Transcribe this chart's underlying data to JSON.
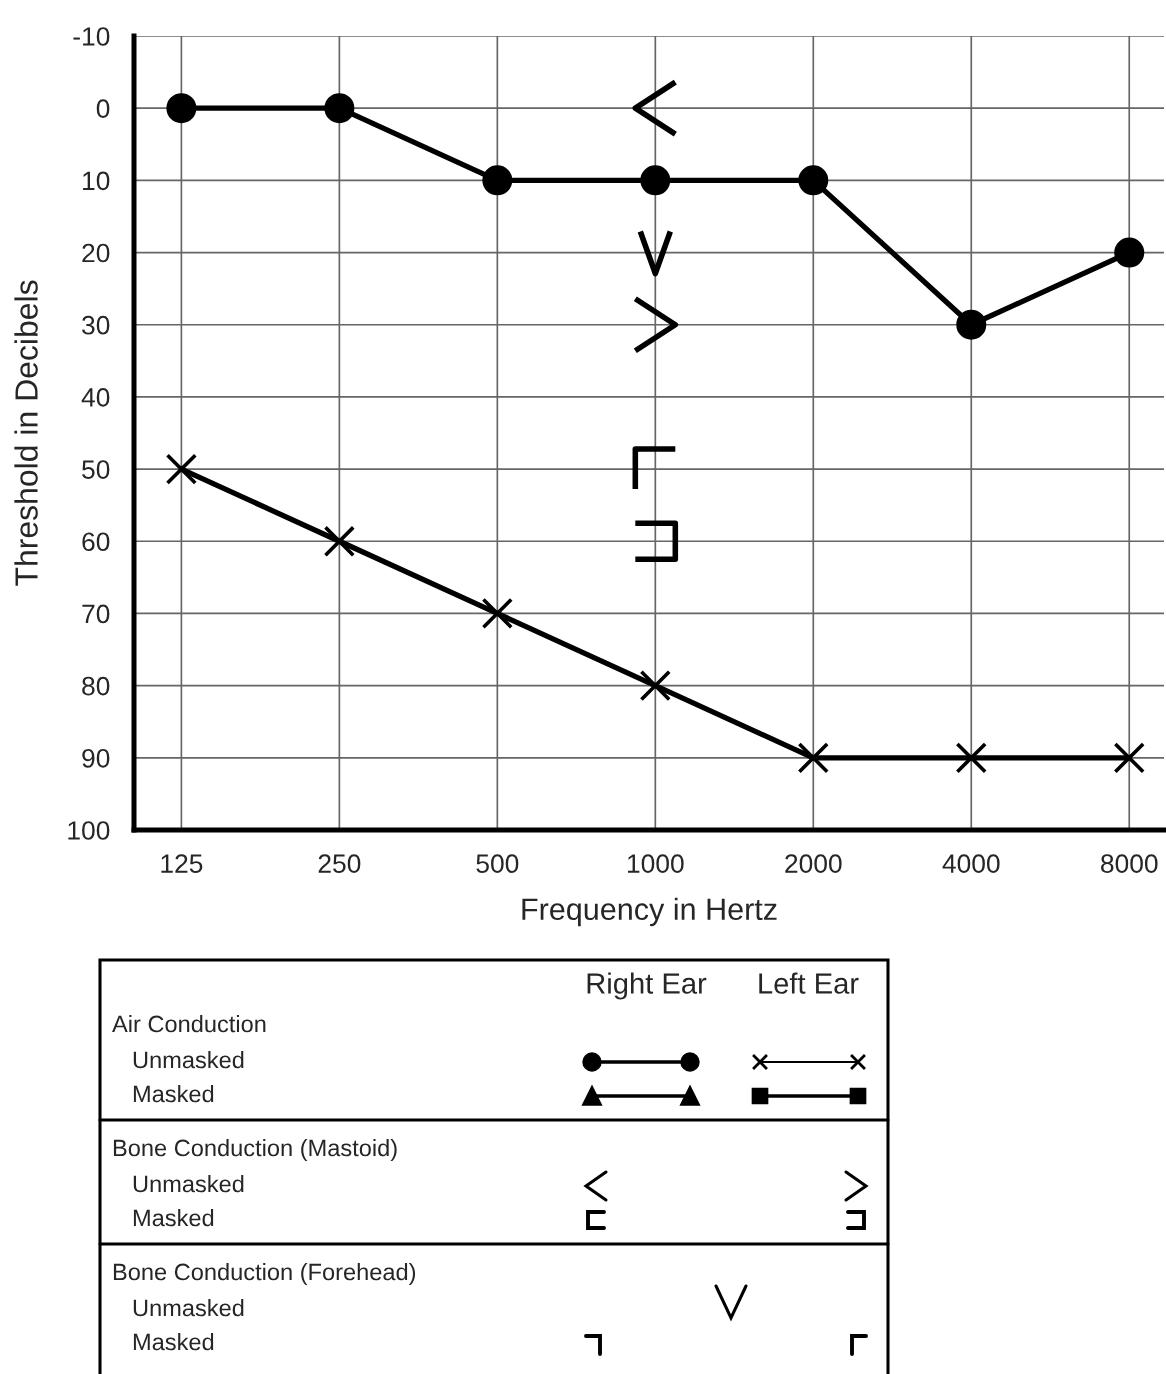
{
  "chart_data": {
    "type": "line",
    "xlabel": "Frequency in Hertz",
    "ylabel": "Threshold in Decibels",
    "categories": [
      "125",
      "250",
      "500",
      "1000",
      "2000",
      "4000",
      "8000"
    ],
    "series": [
      {
        "color": "#000000",
        "marker": "circle",
        "values": [
          0,
          0,
          10,
          10,
          10,
          30,
          20
        ]
      },
      {
        "color": "#000000",
        "marker": "cross",
        "values": [
          50,
          60,
          70,
          80,
          90,
          90,
          90
        ]
      },
      {
        "type": "scatter",
        "color": "#000000",
        "values": [
          null,
          null,
          null,
          0,
          null,
          null,
          null
        ]
      },
      {
        "type": "scatter",
        "color": "#000000",
        "values": [
          null,
          null,
          null,
          20,
          null,
          null,
          null
        ]
      },
      {
        "type": "scatter",
        "color": "#000000",
        "values": [
          null,
          null,
          null,
          30,
          null,
          null,
          null
        ]
      },
      {
        "type": "scatter",
        "color": "#000000",
        "values": [
          null,
          null,
          null,
          50,
          null,
          null,
          null
        ]
      },
      {
        "type": "scatter",
        "color": "#000000",
        "values": [
          null,
          null,
          null,
          60,
          null,
          null,
          null
        ]
      }
    ],
    "ylim": [
      100,
      -10
    ],
    "yticks": [
      -10,
      0,
      10,
      20,
      30,
      40,
      50,
      60,
      70,
      80,
      90,
      100
    ],
    "grid": true,
    "line_style": "solid",
    "annotations": [
      "Right Ear",
      "Left Ear",
      "Air Conduction",
      "Unmasked",
      "Masked",
      "Bone Conduction (Mastoid)",
      "Unmasked",
      "Masked",
      "Bone Conduction (Forehead)",
      "Unmasked",
      "Masked"
    ]
  }
}
